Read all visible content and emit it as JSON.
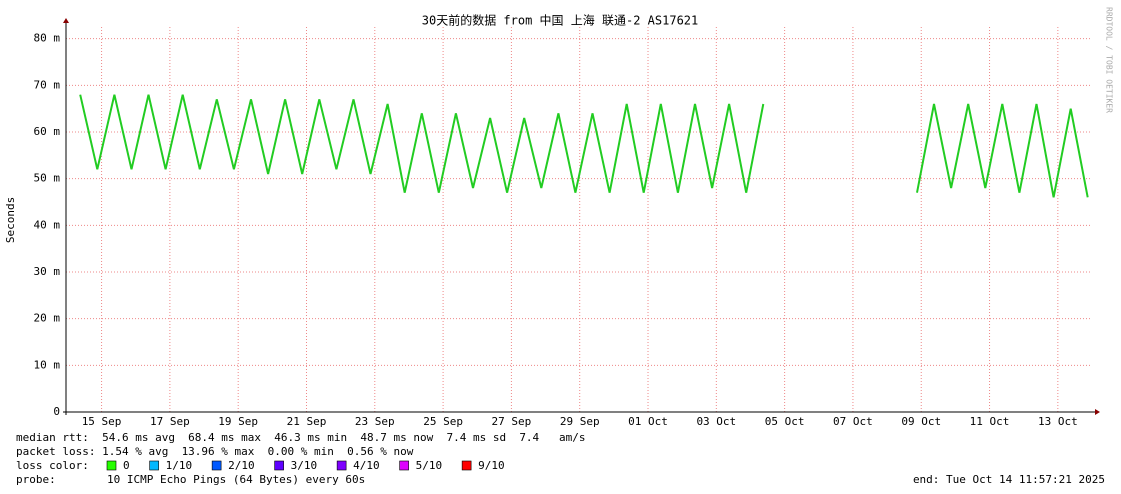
{
  "chart_data": {
    "type": "line",
    "title": "30天前的数据 from 中国 上海 联通-2 AS17621",
    "y_label": "Seconds",
    "watermark": "RRDTOOL / TOBI OETIKER",
    "color": "#22cc22",
    "x": [
      "2025-09-14T21:00",
      "2025-09-15T09:00",
      "2025-09-15T21:00",
      "2025-09-16T09:00",
      "2025-09-16T21:00",
      "2025-09-17T09:00",
      "2025-09-17T21:00",
      "2025-09-18T09:00",
      "2025-09-18T21:00",
      "2025-09-19T09:00",
      "2025-09-19T21:00",
      "2025-09-20T09:00",
      "2025-09-20T21:00",
      "2025-09-21T09:00",
      "2025-09-21T21:00",
      "2025-09-22T09:00",
      "2025-09-22T21:00",
      "2025-09-23T09:00",
      "2025-09-23T21:00",
      "2025-09-24T09:00",
      "2025-09-24T21:00",
      "2025-09-25T09:00",
      "2025-09-25T21:00",
      "2025-09-26T09:00",
      "2025-09-26T21:00",
      "2025-09-27T09:00",
      "2025-09-27T21:00",
      "2025-09-28T09:00",
      "2025-09-28T21:00",
      "2025-09-29T09:00",
      "2025-09-29T21:00",
      "2025-09-30T09:00",
      "2025-09-30T21:00",
      "2025-10-01T09:00",
      "2025-10-01T21:00",
      "2025-10-02T09:00",
      "2025-10-02T21:00",
      "2025-10-03T09:00",
      "2025-10-03T21:00",
      "2025-10-04T09:00",
      "2025-10-04T21:00",
      "2025-10-05T09:00",
      "2025-10-05T21:00",
      "2025-10-06T09:00",
      "2025-10-06T21:00",
      "2025-10-07T09:00",
      "2025-10-07T21:00",
      "2025-10-08T09:00",
      "2025-10-08T21:00",
      "2025-10-09T09:00",
      "2025-10-09T21:00",
      "2025-10-10T09:00",
      "2025-10-10T21:00",
      "2025-10-11T09:00",
      "2025-10-11T21:00",
      "2025-10-12T09:00",
      "2025-10-12T21:00",
      "2025-10-13T09:00",
      "2025-10-13T21:00",
      "2025-10-14T09:00"
    ],
    "values": [
      0.068,
      0.052,
      0.068,
      0.052,
      0.068,
      0.052,
      0.068,
      0.052,
      0.067,
      0.052,
      0.067,
      0.051,
      0.067,
      0.051,
      0.067,
      0.052,
      0.067,
      0.051,
      0.066,
      0.047,
      0.064,
      0.047,
      0.064,
      0.048,
      0.063,
      0.047,
      0.063,
      0.048,
      0.064,
      0.047,
      0.064,
      0.047,
      0.066,
      0.047,
      0.066,
      0.047,
      0.066,
      0.048,
      0.066,
      0.047,
      0.066,
      null,
      null,
      null,
      null,
      null,
      null,
      null,
      null,
      0.047,
      0.066,
      0.048,
      0.066,
      0.048,
      0.066,
      0.047,
      0.066,
      0.046,
      0.065,
      0.046
    ],
    "xlim": [
      "2025-09-14T11:00",
      "2025-10-14T12:00"
    ],
    "xticks": [
      {
        "value": "2025-09-15T12:00",
        "label": "15 Sep"
      },
      {
        "value": "2025-09-17T12:00",
        "label": "17 Sep"
      },
      {
        "value": "2025-09-19T12:00",
        "label": "19 Sep"
      },
      {
        "value": "2025-09-21T12:00",
        "label": "21 Sep"
      },
      {
        "value": "2025-09-23T12:00",
        "label": "23 Sep"
      },
      {
        "value": "2025-09-25T12:00",
        "label": "25 Sep"
      },
      {
        "value": "2025-09-27T12:00",
        "label": "27 Sep"
      },
      {
        "value": "2025-09-29T12:00",
        "label": "29 Sep"
      },
      {
        "value": "2025-10-01T12:00",
        "label": "01 Oct"
      },
      {
        "value": "2025-10-03T12:00",
        "label": "03 Oct"
      },
      {
        "value": "2025-10-05T12:00",
        "label": "05 Oct"
      },
      {
        "value": "2025-10-07T12:00",
        "label": "07 Oct"
      },
      {
        "value": "2025-10-09T12:00",
        "label": "09 Oct"
      },
      {
        "value": "2025-10-11T12:00",
        "label": "11 Oct"
      },
      {
        "value": "2025-10-13T12:00",
        "label": "13 Oct"
      }
    ],
    "ylim": [
      0,
      0.0825
    ],
    "yticks": [
      0,
      {
        "value": 0.01,
        "label": "10 m"
      },
      {
        "value": 0.02,
        "label": "20 m"
      },
      {
        "value": 0.03,
        "label": "30 m"
      },
      {
        "value": 0.04,
        "label": "40 m"
      },
      {
        "value": 0.05,
        "label": "50 m"
      },
      {
        "value": 0.06,
        "label": "60 m"
      },
      {
        "value": 0.07,
        "label": "70 m"
      },
      {
        "value": 0.08,
        "label": "80 m"
      }
    ],
    "grid": true
  },
  "footer": {
    "rtt": "median rtt:  54.6 ms avg  68.4 ms max  46.3 ms min  48.7 ms now  7.4 ms sd  7.4   am/s",
    "loss": "packet loss: 1.54 % avg  13.96 % max  0.00 % min  0.56 % now",
    "loss_color_label": "loss color:",
    "loss_colors": [
      {
        "label": "0",
        "color": "#26ff00"
      },
      {
        "label": "1/10",
        "color": "#00b8ff"
      },
      {
        "label": "2/10",
        "color": "#0059ff"
      },
      {
        "label": "3/10",
        "color": "#5e00ff"
      },
      {
        "label": "4/10",
        "color": "#7e00ff"
      },
      {
        "label": "5/10",
        "color": "#dd00ff"
      },
      {
        "label": "9/10",
        "color": "#ff0000"
      }
    ],
    "probe_label": "probe:",
    "probe": "10 ICMP Echo Pings (64 Bytes) every 60s",
    "end": "end: Tue Oct 14 11:57:21 2025"
  }
}
